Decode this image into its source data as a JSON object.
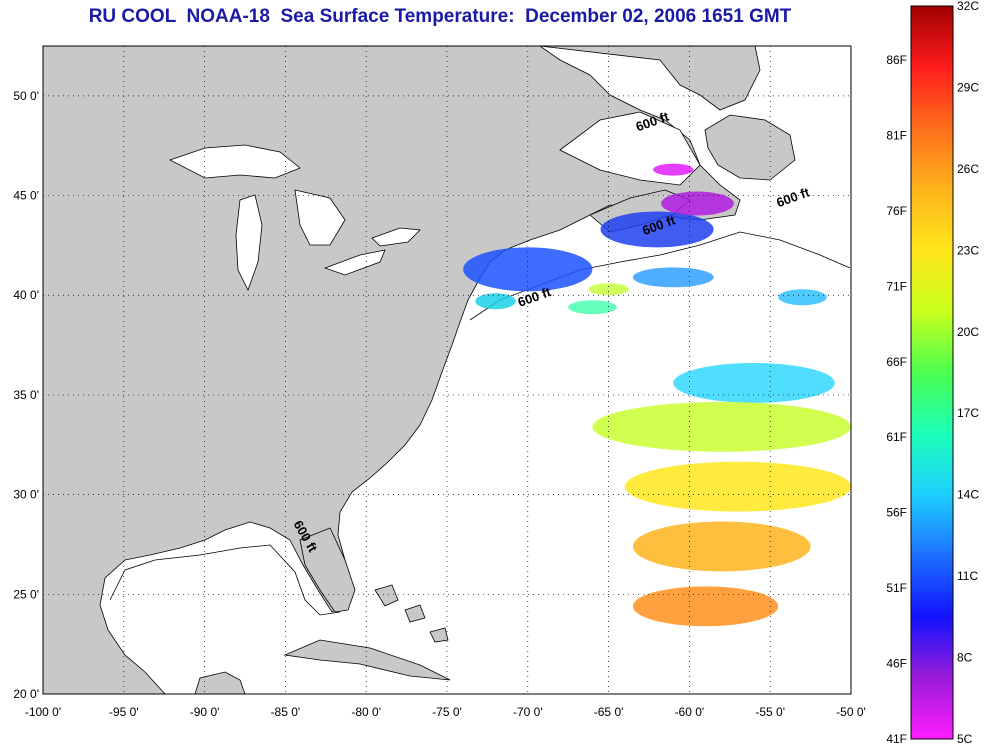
{
  "title": "RU COOL  NOAA-18  Sea Surface Temperature:  December 02, 2006 1651 GMT",
  "map": {
    "lon_range": [
      -100,
      -50
    ],
    "lat_range": [
      20,
      52.5
    ],
    "grid": "dotted",
    "land_color": "#c8c8c8",
    "ocean_color": "#ffffff",
    "lon_ticks": [
      "-100 0'",
      "-95 0'",
      "-90 0'",
      "-85 0'",
      "-80 0'",
      "-75 0'",
      "-70 0'",
      "-65 0'",
      "-60 0'",
      "-55 0'",
      "-50 0'"
    ],
    "lat_ticks": [
      "20 0'",
      "25 0'",
      "30 0'",
      "35 0'",
      "40 0'",
      "45 0'",
      "50 0'"
    ],
    "contour_labels": [
      {
        "text": "600 ft",
        "lon": -69.5,
        "lat": 39.7
      },
      {
        "text": "600 ft",
        "lon": -61.8,
        "lat": 43.3
      },
      {
        "text": "600 ft",
        "lon": -62.2,
        "lat": 48.5
      },
      {
        "text": "600 ft",
        "lon": -53.5,
        "lat": 44.7
      },
      {
        "text": "600 ft",
        "lon": -84.0,
        "lat": 27.8
      }
    ]
  },
  "colorbar": {
    "celsius_labels": [
      "32C",
      "29C",
      "26C",
      "23C",
      "20C",
      "17C",
      "14C",
      "11C",
      "8C",
      "5C"
    ],
    "fahrenheit_labels": [
      "86F",
      "81F",
      "76F",
      "71F",
      "66F",
      "61F",
      "56F",
      "51F",
      "46F",
      "41F"
    ],
    "colors": [
      "#ff1cff",
      "#9b1cd8",
      "#1212ff",
      "#1c70ff",
      "#1ccfff",
      "#1cffb8",
      "#4cff50",
      "#c8ff1c",
      "#ffe61c",
      "#ffb41c",
      "#ff6e1c",
      "#ff1c1c",
      "#a00000"
    ]
  },
  "sst_patches": [
    {
      "lon": -70,
      "lat": 41.3,
      "w": 8,
      "h": 2.2,
      "color": "#1c52ff"
    },
    {
      "lon": -62,
      "lat": 43.3,
      "w": 7,
      "h": 1.8,
      "color": "#2040f0"
    },
    {
      "lon": -59.5,
      "lat": 44.6,
      "w": 4.5,
      "h": 1.2,
      "color": "#b01ce0"
    },
    {
      "lon": -61,
      "lat": 46.3,
      "w": 2.5,
      "h": 0.6,
      "color": "#e01cff"
    },
    {
      "lon": -72,
      "lat": 39.7,
      "w": 2.5,
      "h": 0.8,
      "color": "#1ccfe8"
    },
    {
      "lon": -66,
      "lat": 39.4,
      "w": 3,
      "h": 0.7,
      "color": "#4cffb0"
    },
    {
      "lon": -65,
      "lat": 40.3,
      "w": 2.5,
      "h": 0.6,
      "color": "#c8ff40"
    },
    {
      "lon": -61,
      "lat": 40.9,
      "w": 5,
      "h": 1,
      "color": "#30a0ff"
    },
    {
      "lon": -53,
      "lat": 39.9,
      "w": 3,
      "h": 0.8,
      "color": "#30c0ff"
    },
    {
      "lon": -56,
      "lat": 35.6,
      "w": 10,
      "h": 2,
      "color": "#30d8ff"
    },
    {
      "lon": -58,
      "lat": 33.4,
      "w": 16,
      "h": 2.5,
      "color": "#c8ff30"
    },
    {
      "lon": -57,
      "lat": 30.4,
      "w": 14,
      "h": 2.5,
      "color": "#ffe61c"
    },
    {
      "lon": -58,
      "lat": 27.4,
      "w": 11,
      "h": 2.5,
      "color": "#ffb41c"
    },
    {
      "lon": -59,
      "lat": 24.4,
      "w": 9,
      "h": 2,
      "color": "#ff901c"
    }
  ]
}
